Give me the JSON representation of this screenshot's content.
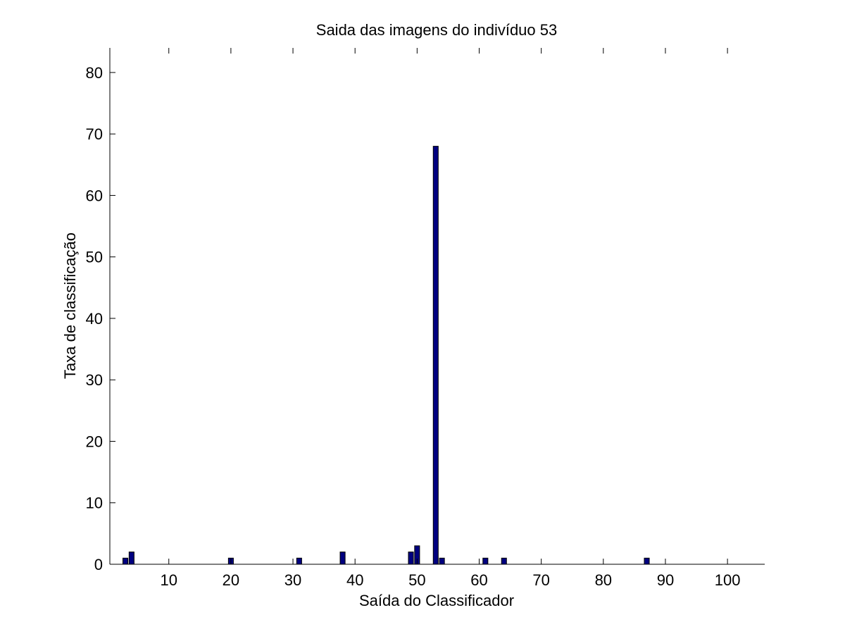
{
  "chart_data": {
    "type": "bar",
    "title": "Saida das imagens do indivíduo 53",
    "xlabel": "Saída do Classificador",
    "ylabel": "Taxa de classificação",
    "xlim": [
      0.5,
      106
    ],
    "ylim": [
      0,
      84
    ],
    "xticks": [
      10,
      20,
      30,
      40,
      50,
      60,
      70,
      80,
      90,
      100
    ],
    "yticks": [
      0,
      10,
      20,
      30,
      40,
      50,
      60,
      70,
      80
    ],
    "grid": false,
    "bar_color": "#000080",
    "x": [
      3,
      4,
      20,
      31,
      38,
      49,
      50,
      53,
      54,
      61,
      64,
      87
    ],
    "values": [
      1,
      2,
      1,
      1,
      2,
      2,
      3,
      68,
      1,
      1,
      1,
      1
    ]
  }
}
